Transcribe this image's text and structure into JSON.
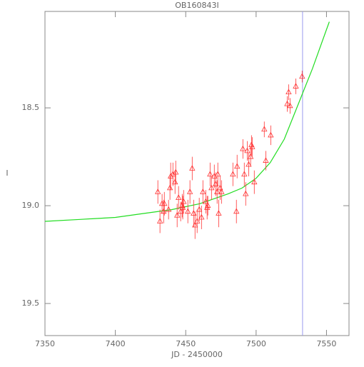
{
  "chart_data": {
    "type": "scatter",
    "title": "OB160843I",
    "x_label": "JD - 2450000",
    "y_label": "I",
    "xlim": [
      7350,
      7566
    ],
    "ylim": [
      19.664,
      18.007
    ],
    "xticks": [
      7350,
      7400,
      7450,
      7500,
      7550
    ],
    "yticks": [
      18.5,
      {
        "value": 19,
        "label": "19.0"
      },
      19.5
    ],
    "color": "#ff3333",
    "x": [
      7430.2,
      7431.7,
      7433.2,
      7434.3,
      7434.8,
      7437.8,
      7438.8,
      7439.3,
      7440.9,
      7442.4,
      7442.9,
      7443.9,
      7444.9,
      7446.4,
      7447.5,
      7447.9,
      7448.5,
      7451.5,
      7453.0,
      7454.6,
      7455.6,
      7456.6,
      7458.1,
      7459.6,
      7461.2,
      7462.2,
      7464.2,
      7465.2,
      7465.7,
      7467.3,
      7468.3,
      7470.3,
      7471.3,
      7472.3,
      7472.8,
      7473.4,
      7474.4,
      7475.4,
      7483.5,
      7486.5,
      7486.0,
      7490.6,
      7491.6,
      7492.6,
      7493.7,
      7494.7,
      7496.1,
      7496.7,
      7497.2,
      7498.7,
      7505.8,
      7506.9,
      7510.4,
      7522.1,
      7523.1,
      7524.1,
      7528.2,
      7532.7
    ],
    "values": [
      18.93,
      19.08,
      18.99,
      19.03,
      18.99,
      19.02,
      18.91,
      18.85,
      18.84,
      18.88,
      18.83,
      19.05,
      18.96,
      19.03,
      19.0,
      19.01,
      18.98,
      19.03,
      18.93,
      18.81,
      19.04,
      19.1,
      19.08,
      19.02,
      19.06,
      18.93,
      18.98,
      19.01,
      19.0,
      18.84,
      18.91,
      18.85,
      18.89,
      18.93,
      18.84,
      19.04,
      18.91,
      18.93,
      18.84,
      18.8,
      19.03,
      18.71,
      18.84,
      18.94,
      18.72,
      18.79,
      18.75,
      18.69,
      18.7,
      18.88,
      18.61,
      18.77,
      18.64,
      18.48,
      18.42,
      18.49,
      18.39,
      18.34
    ],
    "errors": [
      0.06,
      0.06,
      0.05,
      0.06,
      0.06,
      0.05,
      0.06,
      0.07,
      0.06,
      0.06,
      0.06,
      0.06,
      0.06,
      0.05,
      0.06,
      0.06,
      0.06,
      0.06,
      0.06,
      0.06,
      0.07,
      0.07,
      0.06,
      0.06,
      0.06,
      0.06,
      0.06,
      0.06,
      0.05,
      0.06,
      0.06,
      0.06,
      0.06,
      0.06,
      0.06,
      0.07,
      0.06,
      0.06,
      0.06,
      0.06,
      0.06,
      0.05,
      0.06,
      0.06,
      0.05,
      0.06,
      0.05,
      0.05,
      0.05,
      0.06,
      0.04,
      0.05,
      0.05,
      0.04,
      0.04,
      0.04,
      0.04,
      0.03
    ],
    "model": {
      "color": "#22dd22",
      "x": [
        7350,
        7375,
        7400,
        7420,
        7440,
        7460,
        7480,
        7490,
        7500,
        7510,
        7520,
        7530,
        7540,
        7550,
        7552
      ],
      "values": [
        19.08,
        19.07,
        19.06,
        19.04,
        19.02,
        18.99,
        18.94,
        18.91,
        18.86,
        18.78,
        18.66,
        18.48,
        18.3,
        18.1,
        18.06
      ]
    },
    "vline": {
      "value": 7533,
      "color": "#9999ee"
    }
  }
}
